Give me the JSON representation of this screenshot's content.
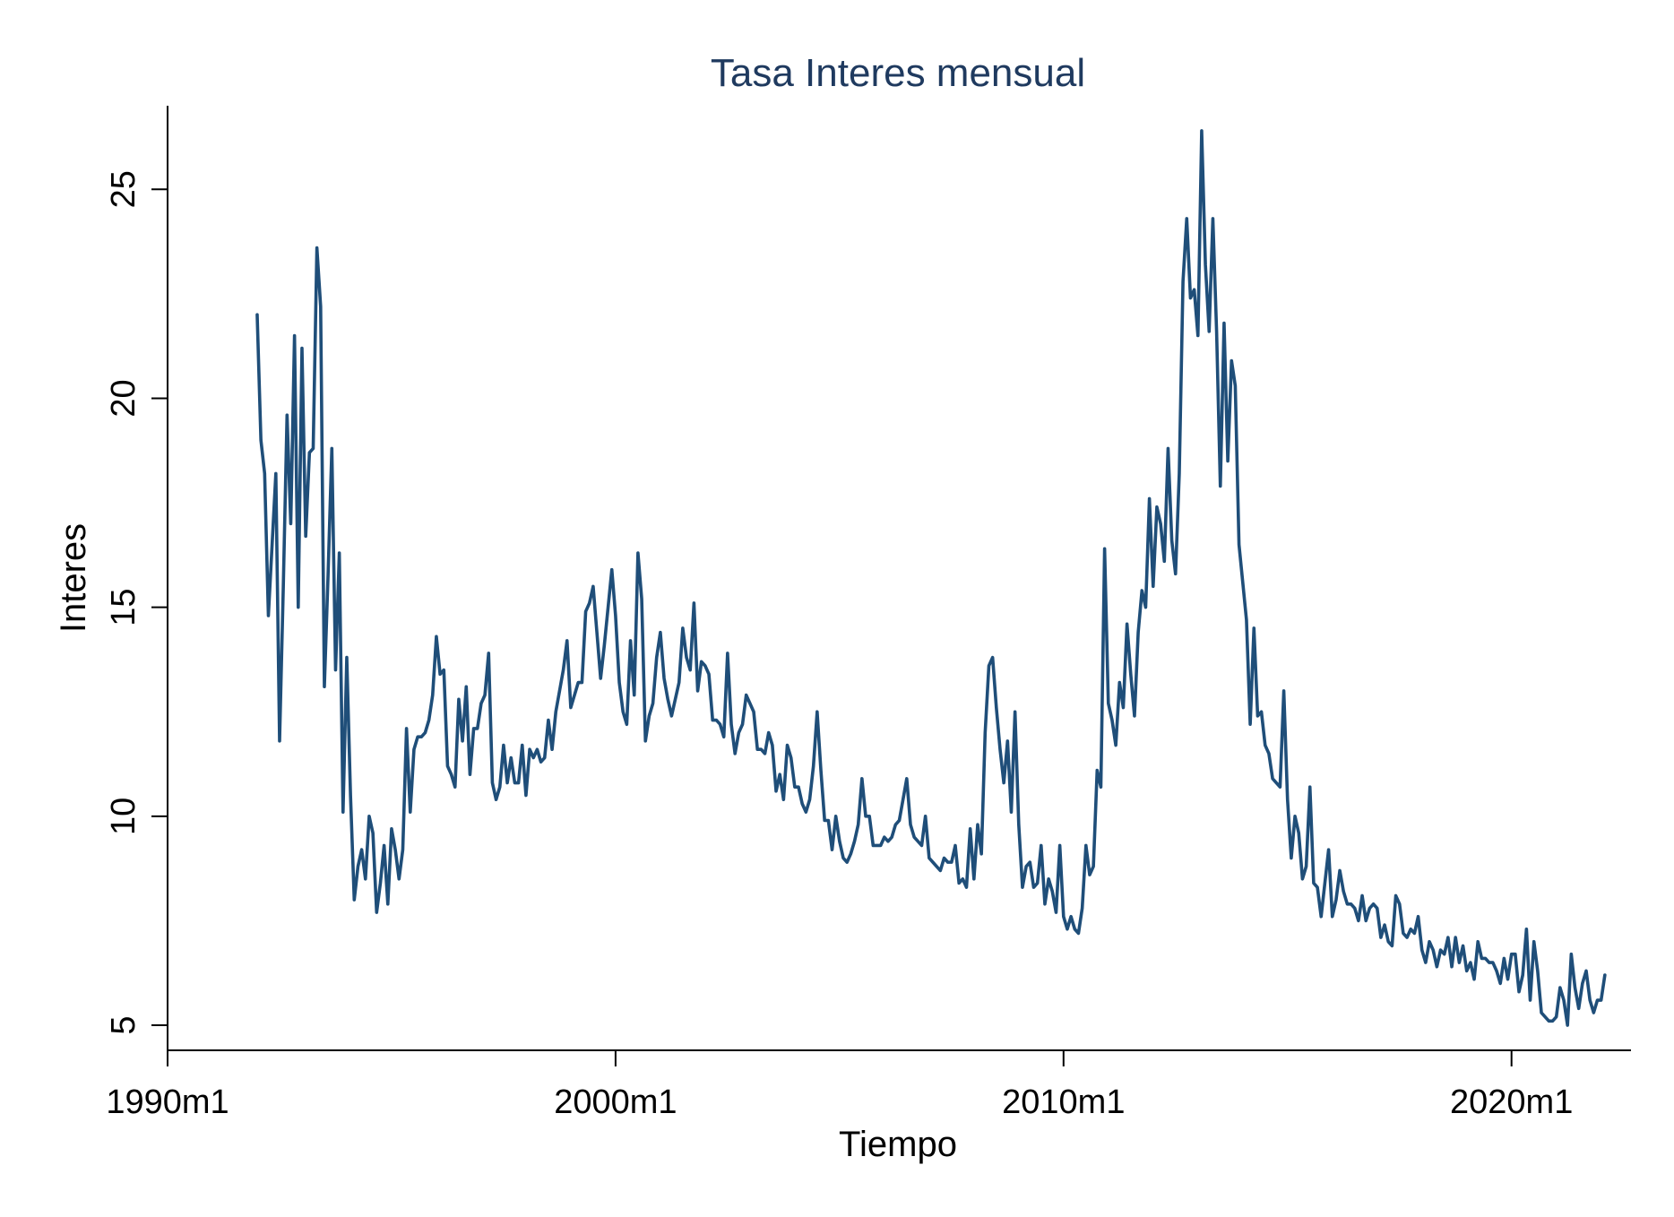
{
  "chart_data": {
    "type": "line",
    "title": "Tasa Interes mensual",
    "xlabel": "Tiempo",
    "ylabel": "Interes",
    "x_start": "1992m1",
    "frequency": "monthly",
    "xlim": [
      "1990m1",
      "2022m9"
    ],
    "ylim": [
      4.4,
      27
    ],
    "x_ticks": [
      "1990m1",
      "2000m1",
      "2010m1",
      "2020m1"
    ],
    "y_ticks": [
      "5",
      "10",
      "15",
      "20",
      "25"
    ],
    "grid": false,
    "legend": "none",
    "colors": {
      "line": "#1f4e79",
      "title": "#1f3a5f",
      "axis": "#000000",
      "background": "#ffffff"
    },
    "series": [
      {
        "values": [
          22.0,
          19.0,
          18.2,
          14.8,
          16.5,
          18.2,
          11.8,
          15.5,
          19.6,
          17.0,
          21.5,
          15.0,
          21.2,
          16.7,
          18.7,
          18.8,
          23.6,
          22.2,
          13.1,
          15.8,
          18.8,
          13.5,
          16.3,
          10.1,
          13.8,
          10.5,
          8.0,
          8.8,
          9.2,
          8.5,
          10.0,
          9.6,
          7.7,
          8.4,
          9.3,
          7.9,
          9.7,
          9.2,
          8.5,
          9.2,
          12.1,
          10.1,
          11.6,
          11.9,
          11.9,
          12.0,
          12.3,
          12.9,
          14.3,
          13.4,
          13.5,
          11.2,
          11.0,
          10.7,
          12.8,
          11.8,
          13.1,
          11.0,
          12.1,
          12.1,
          12.7,
          12.9,
          13.9,
          10.8,
          10.4,
          10.7,
          11.7,
          10.8,
          11.4,
          10.8,
          10.8,
          11.7,
          10.5,
          11.6,
          11.4,
          11.6,
          11.3,
          11.4,
          12.3,
          11.6,
          12.5,
          13.0,
          13.5,
          14.2,
          12.6,
          12.9,
          13.2,
          13.2,
          14.9,
          15.1,
          15.5,
          14.4,
          13.3,
          14.1,
          15.0,
          15.9,
          14.8,
          13.2,
          12.5,
          12.2,
          14.2,
          12.9,
          16.3,
          15.2,
          11.8,
          12.4,
          12.7,
          13.8,
          14.4,
          13.3,
          12.8,
          12.4,
          12.8,
          13.2,
          14.5,
          13.8,
          13.5,
          15.1,
          13.0,
          13.7,
          13.6,
          13.4,
          12.3,
          12.3,
          12.2,
          11.9,
          13.9,
          12.2,
          11.5,
          12.0,
          12.2,
          12.9,
          12.7,
          12.5,
          11.6,
          11.6,
          11.5,
          12.0,
          11.7,
          10.6,
          11.0,
          10.4,
          11.7,
          11.4,
          10.7,
          10.7,
          10.3,
          10.1,
          10.4,
          11.2,
          12.5,
          11.1,
          9.9,
          9.9,
          9.2,
          10.0,
          9.4,
          9.0,
          8.9,
          9.1,
          9.4,
          9.8,
          10.9,
          10.0,
          10.0,
          9.3,
          9.3,
          9.3,
          9.5,
          9.4,
          9.5,
          9.8,
          9.9,
          10.4,
          10.9,
          9.8,
          9.5,
          9.4,
          9.3,
          10.0,
          9.0,
          8.9,
          8.8,
          8.7,
          9.0,
          8.9,
          8.9,
          9.3,
          8.4,
          8.5,
          8.3,
          9.7,
          8.5,
          9.8,
          9.1,
          12.0,
          13.6,
          13.8,
          12.6,
          11.6,
          10.8,
          11.8,
          10.1,
          12.5,
          9.8,
          8.3,
          8.8,
          8.9,
          8.3,
          8.4,
          9.3,
          7.9,
          8.5,
          8.2,
          7.7,
          9.3,
          7.6,
          7.3,
          7.6,
          7.3,
          7.2,
          7.8,
          9.3,
          8.6,
          8.8,
          11.1,
          10.7,
          16.4,
          12.7,
          12.3,
          11.7,
          13.2,
          12.6,
          14.6,
          13.4,
          12.4,
          14.4,
          15.4,
          15.0,
          17.6,
          15.5,
          17.4,
          17.0,
          16.1,
          18.8,
          16.6,
          15.8,
          18.2,
          22.8,
          24.3,
          22.4,
          22.6,
          21.5,
          26.4,
          23.2,
          21.6,
          24.3,
          21.6,
          17.9,
          21.8,
          18.5,
          20.9,
          20.3,
          16.5,
          15.6,
          14.7,
          12.2,
          14.5,
          12.4,
          12.5,
          11.7,
          11.5,
          10.9,
          10.8,
          10.7,
          13.0,
          10.4,
          9.0,
          10.0,
          9.6,
          8.5,
          8.8,
          10.7,
          8.4,
          8.3,
          7.6,
          8.4,
          9.2,
          7.6,
          8.0,
          8.7,
          8.2,
          7.9,
          7.9,
          7.8,
          7.5,
          8.1,
          7.5,
          7.8,
          7.9,
          7.8,
          7.1,
          7.4,
          7.0,
          6.9,
          8.1,
          7.9,
          7.2,
          7.1,
          7.3,
          7.2,
          7.6,
          6.8,
          6.5,
          7.0,
          6.8,
          6.4,
          6.8,
          6.7,
          7.1,
          6.4,
          7.1,
          6.5,
          6.9,
          6.3,
          6.5,
          6.1,
          7.0,
          6.6,
          6.6,
          6.5,
          6.5,
          6.3,
          6.0,
          6.6,
          6.1,
          6.7,
          6.7,
          5.8,
          6.2,
          7.3,
          5.6,
          7.0,
          6.3,
          5.3,
          5.2,
          5.1,
          5.1,
          5.2,
          5.9,
          5.6,
          5.0,
          6.7,
          5.9,
          5.4,
          6.0,
          6.3,
          5.6,
          5.3,
          5.6,
          5.6,
          6.2
        ]
      }
    ]
  }
}
